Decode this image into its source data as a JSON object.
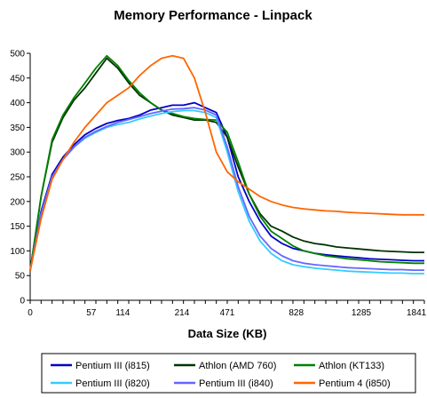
{
  "chart_data": {
    "type": "line",
    "title": "Memory Performance - Linpack",
    "xlabel": "Data Size (KB)",
    "ylabel": "",
    "ylim": [
      0,
      500
    ],
    "yticks": [
      0,
      50,
      100,
      150,
      200,
      250,
      300,
      350,
      400,
      450,
      500
    ],
    "xticks": [
      0,
      57,
      114,
      214,
      471,
      828,
      1285,
      1841
    ],
    "x": [
      0,
      8,
      16,
      24,
      32,
      40,
      48,
      57,
      66,
      76,
      86,
      96,
      114,
      130,
      150,
      170,
      190,
      214,
      240,
      270,
      300,
      340,
      390,
      471,
      560,
      660,
      760,
      828,
      920,
      1020,
      1130,
      1285,
      1400,
      1550,
      1700,
      1841,
      1950
    ],
    "grid": false,
    "legend_position": "bottom",
    "series": [
      {
        "name": "Pentium III (i815)",
        "color": "#0000c8",
        "values": [
          60,
          180,
          255,
          290,
          315,
          335,
          348,
          358,
          364,
          368,
          375,
          385,
          390,
          395,
          395,
          400,
          390,
          380,
          330,
          250,
          200,
          160,
          130,
          115,
          105,
          100,
          95,
          92,
          90,
          88,
          86,
          84,
          83,
          82,
          81,
          80,
          80
        ]
      },
      {
        "name": "Athlon (AMD 760)",
        "color": "#003300",
        "values": [
          60,
          210,
          320,
          370,
          405,
          430,
          460,
          490,
          470,
          440,
          415,
          400,
          385,
          375,
          370,
          365,
          365,
          360,
          330,
          270,
          215,
          175,
          150,
          140,
          128,
          120,
          115,
          112,
          108,
          106,
          104,
          102,
          100,
          99,
          98,
          97,
          97
        ]
      },
      {
        "name": "Athlon (KT133)",
        "color": "#008000",
        "values": [
          60,
          210,
          325,
          375,
          410,
          440,
          470,
          495,
          475,
          445,
          420,
          400,
          385,
          378,
          372,
          368,
          366,
          365,
          340,
          280,
          215,
          170,
          140,
          125,
          110,
          100,
          95,
          90,
          87,
          84,
          82,
          80,
          78,
          77,
          76,
          75,
          75
        ]
      },
      {
        "name": "Pentium III (i820)",
        "color": "#33ccff",
        "values": [
          60,
          175,
          250,
          285,
          310,
          328,
          340,
          350,
          356,
          360,
          367,
          373,
          378,
          382,
          384,
          384,
          380,
          370,
          300,
          220,
          160,
          120,
          95,
          80,
          72,
          68,
          65,
          63,
          61,
          59,
          58,
          57,
          56,
          55,
          55,
          54,
          54
        ]
      },
      {
        "name": "Pentium III (i840)",
        "color": "#6666ff",
        "values": [
          60,
          175,
          250,
          285,
          310,
          330,
          342,
          352,
          360,
          366,
          372,
          378,
          383,
          387,
          388,
          390,
          385,
          375,
          310,
          230,
          170,
          130,
          105,
          90,
          80,
          75,
          72,
          70,
          68,
          66,
          65,
          64,
          63,
          62,
          62,
          61,
          61
        ]
      },
      {
        "name": "Pentium 4 (i850)",
        "color": "#ff6600",
        "values": [
          60,
          165,
          245,
          285,
          320,
          350,
          375,
          400,
          415,
          430,
          455,
          475,
          490,
          495,
          490,
          450,
          380,
          300,
          260,
          240,
          225,
          210,
          200,
          193,
          188,
          185,
          183,
          181,
          180,
          178,
          177,
          176,
          175,
          174,
          173,
          173,
          173
        ]
      }
    ]
  }
}
